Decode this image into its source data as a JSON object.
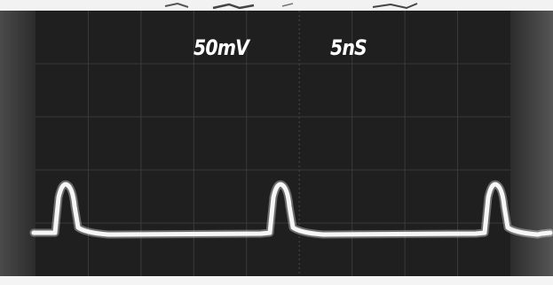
{
  "scope_photo": {
    "volts_per_div": "50mV",
    "time_per_div": "5nS"
  },
  "colors": {
    "screen": "#1f1f1f",
    "grid": "#3a3a3a",
    "trace": "#f6f6f6"
  }
}
